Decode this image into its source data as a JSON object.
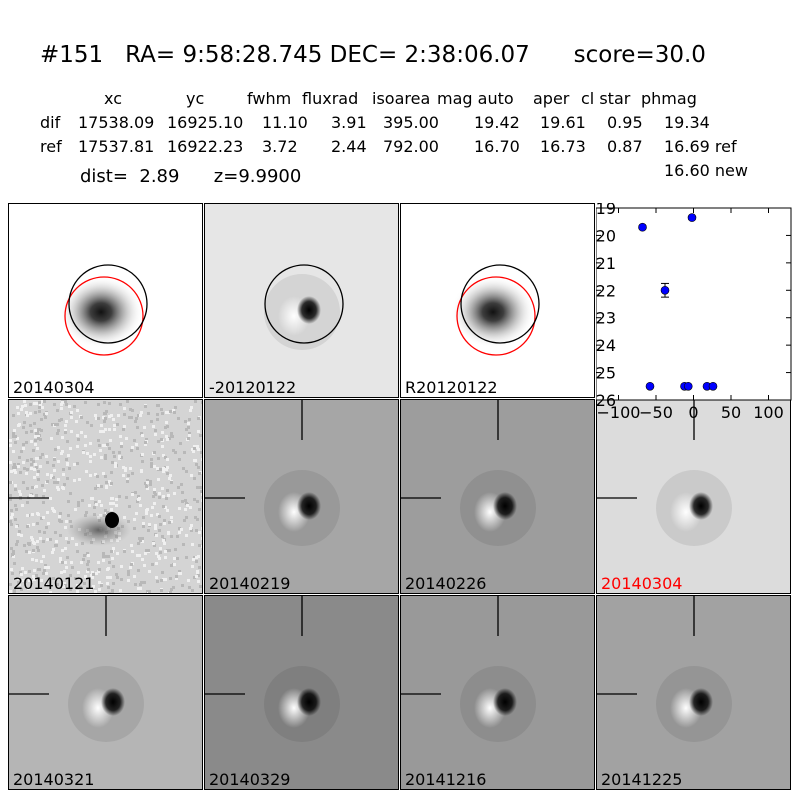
{
  "header": {
    "title": "#151   RA= 9:58:28.745 DEC= 2:38:06.07      score=30.0",
    "columns": [
      "xc",
      "yc",
      "fwhm",
      "fluxrad",
      "isoarea",
      "mag auto",
      "aper",
      "cl star",
      "phmag"
    ],
    "rows": [
      {
        "label": "dif",
        "values": [
          "17538.09",
          "16925.10",
          "11.10",
          "3.91",
          "395.00",
          "19.42",
          "19.61",
          "0.95",
          "19.34"
        ]
      },
      {
        "label": "ref",
        "values": [
          "17537.81",
          "16922.23",
          "3.72",
          "2.44",
          "792.00",
          "16.70",
          "16.73",
          "0.87",
          "16.69 ref"
        ]
      }
    ],
    "new_mag": "16.60 new",
    "dist_line": "dist=  2.89      z=9.9900"
  },
  "stamps": [
    {
      "label": "20140304",
      "bg": "#ffffff",
      "blob": "soft",
      "circles": true
    },
    {
      "label": "-20120122",
      "bg": "#e6e6e6",
      "blob": "dipole",
      "circles": "black"
    },
    {
      "label": "R20120122",
      "bg": "#ffffff",
      "blob": "soft",
      "circles": true
    },
    {
      "label": "20140121",
      "bg": "#d4d4d4",
      "blob": "noisy",
      "cross": false
    },
    {
      "label": "20140219",
      "bg": "#a6a6a6",
      "blob": "dipole",
      "cross": true
    },
    {
      "label": "20140226",
      "bg": "#9d9d9d",
      "blob": "dipole",
      "cross": true
    },
    {
      "label": "20140304",
      "bg": "#dcdcdc",
      "blob": "dipole",
      "cross": true,
      "label_color": "#ff0000"
    },
    {
      "label": "20140321",
      "bg": "#b5b5b5",
      "blob": "dipole",
      "cross": true
    },
    {
      "label": "20140329",
      "bg": "#8a8a8a",
      "blob": "dipole",
      "cross": true
    },
    {
      "label": "20141216",
      "bg": "#999999",
      "blob": "dipole",
      "cross": true
    },
    {
      "label": "20141225",
      "bg": "#a2a2a2",
      "blob": "dipole",
      "cross": true
    }
  ],
  "chart_data": {
    "type": "scatter",
    "xlim": [
      -130,
      130
    ],
    "ylim": [
      26,
      19
    ],
    "xticks": [
      -100,
      -50,
      0,
      50,
      100
    ],
    "yticks": [
      19,
      20,
      21,
      22,
      23,
      24,
      25,
      26
    ],
    "points": [
      {
        "x": -68,
        "y": 19.7
      },
      {
        "x": -2,
        "y": 19.35
      },
      {
        "x": -38,
        "y": 22.0,
        "err": 0.25
      },
      {
        "x": -58,
        "y": 25.5
      },
      {
        "x": -12,
        "y": 25.5
      },
      {
        "x": -7,
        "y": 25.5
      },
      {
        "x": 18,
        "y": 25.5
      },
      {
        "x": 26,
        "y": 25.5
      }
    ],
    "color": "#0000ff"
  }
}
